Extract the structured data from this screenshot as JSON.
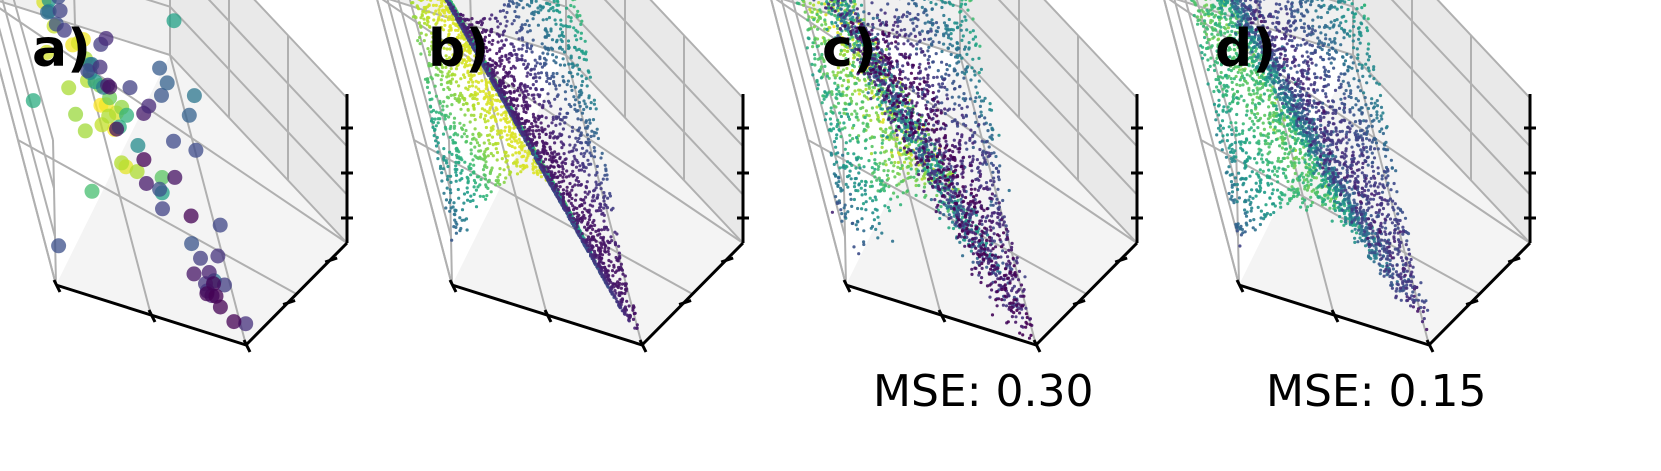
{
  "figure": {
    "panels": [
      {
        "label": "a)",
        "mse": "",
        "point_style": "sparse"
      },
      {
        "label": "b)",
        "mse": "",
        "point_style": "dense"
      },
      {
        "label": "c)",
        "mse": "MSE: 0.30",
        "point_style": "dense"
      },
      {
        "label": "d)",
        "mse": "MSE: 0.15",
        "point_style": "dense"
      }
    ],
    "colormap": "viridis",
    "pane_color": "#f0f0f0",
    "grid_color": "#b0b0b0",
    "axis_color": "#000000"
  },
  "chart_data": [
    {
      "type": "scatter",
      "title": "",
      "dimensions": 3,
      "xlabel": "",
      "ylabel": "",
      "zlabel": "",
      "grid": true,
      "annotation": "a)",
      "description_of_values": "sparse sample points, color by z"
    },
    {
      "type": "scatter",
      "title": "",
      "dimensions": 3,
      "xlabel": "",
      "ylabel": "",
      "zlabel": "",
      "grid": true,
      "annotation": "b)",
      "description_of_values": "dense ground-truth surface, color by z"
    },
    {
      "type": "scatter",
      "title": "",
      "dimensions": 3,
      "xlabel": "",
      "ylabel": "",
      "zlabel": "",
      "grid": true,
      "annotation": "c)",
      "mse": 0.3
    },
    {
      "type": "scatter",
      "title": "",
      "dimensions": 3,
      "xlabel": "",
      "ylabel": "",
      "zlabel": "",
      "grid": true,
      "annotation": "d)",
      "mse": 0.15
    }
  ]
}
